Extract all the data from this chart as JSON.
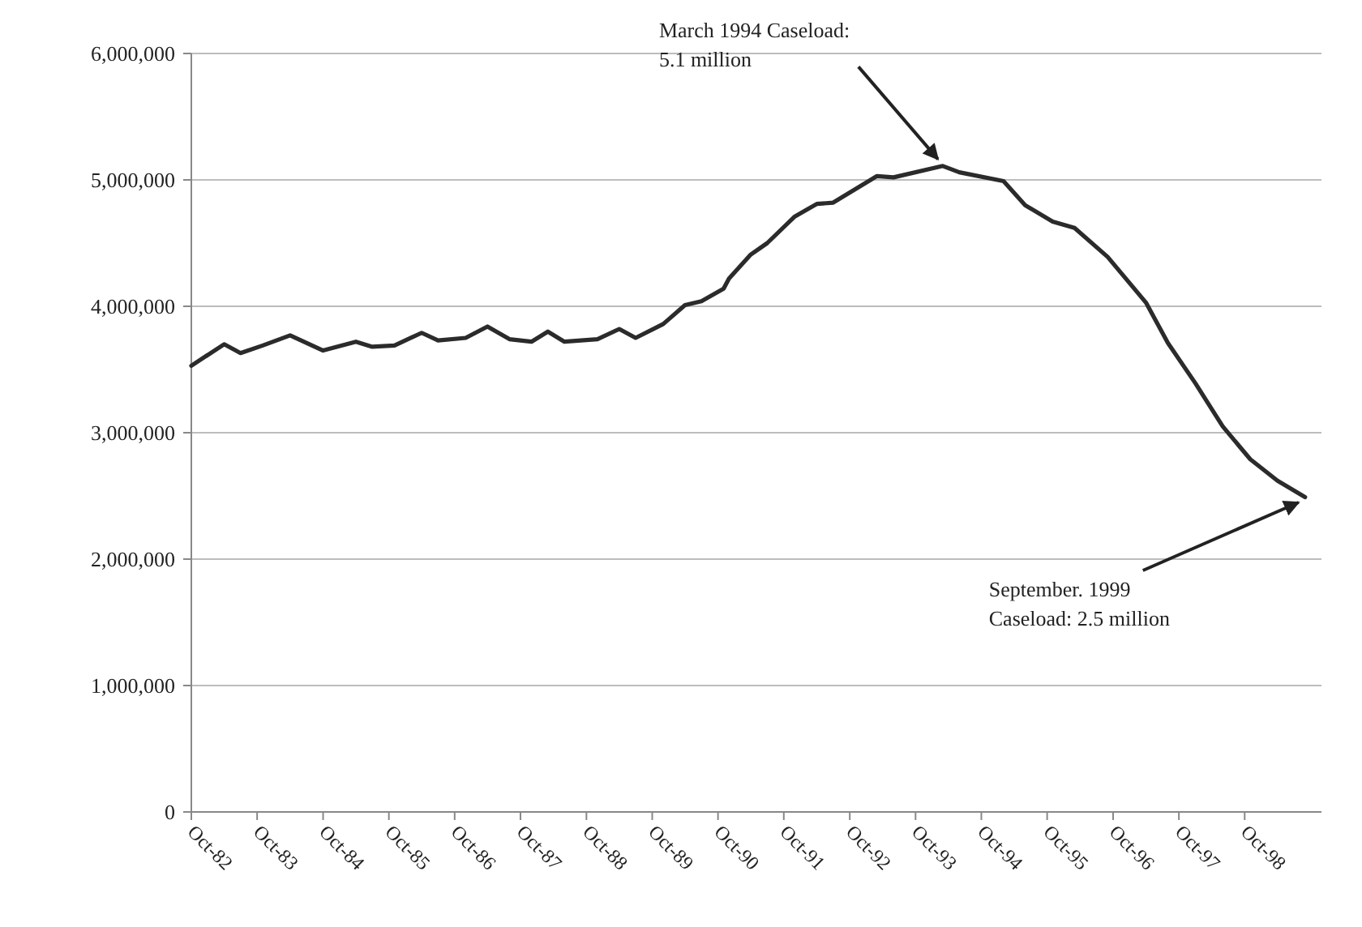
{
  "chart_data": {
    "type": "line",
    "x": [
      "1982-10",
      "1983-04",
      "1983-07",
      "1983-11",
      "1984-04",
      "1984-10",
      "1985-04",
      "1985-07",
      "1985-11",
      "1986-04",
      "1986-07",
      "1986-12",
      "1987-04",
      "1987-08",
      "1987-12",
      "1988-03",
      "1988-06",
      "1988-12",
      "1989-04",
      "1989-07",
      "1989-12",
      "1990-04",
      "1990-07",
      "1990-11",
      "1990-12",
      "1991-04",
      "1991-07",
      "1991-12",
      "1992-04",
      "1992-07",
      "1993-03",
      "1993-06",
      "1994-03",
      "1994-06",
      "1995-02",
      "1995-06",
      "1995-11",
      "1996-03",
      "1996-09",
      "1997-04",
      "1997-08",
      "1998-01",
      "1998-06",
      "1998-11",
      "1999-04",
      "1999-09"
    ],
    "series": [
      {
        "color": "#2b2b2b",
        "values": [
          3530000,
          3700000,
          3630000,
          3690000,
          3770000,
          3650000,
          3720000,
          3680000,
          3690000,
          3790000,
          3730000,
          3750000,
          3840000,
          3740000,
          3720000,
          3800000,
          3720000,
          3740000,
          3820000,
          3750000,
          3860000,
          4010000,
          4040000,
          4140000,
          4220000,
          4410000,
          4500000,
          4710000,
          4810000,
          4820000,
          5030000,
          5020000,
          5110000,
          5060000,
          4990000,
          4800000,
          4670000,
          4620000,
          4390000,
          4030000,
          3710000,
          3390000,
          3050000,
          2790000,
          2620000,
          2490000
        ]
      }
    ],
    "xlim": [
      "1982-10",
      "1999-12"
    ],
    "xticks": [
      {
        "value": "1982-10",
        "label": "Oct-82"
      },
      {
        "value": "1983-10",
        "label": "Oct-83"
      },
      {
        "value": "1984-10",
        "label": "Oct-84"
      },
      {
        "value": "1985-10",
        "label": "Oct-85"
      },
      {
        "value": "1986-10",
        "label": "Oct-86"
      },
      {
        "value": "1987-10",
        "label": "Oct-87"
      },
      {
        "value": "1988-10",
        "label": "Oct-88"
      },
      {
        "value": "1989-10",
        "label": "Oct-89"
      },
      {
        "value": "1990-10",
        "label": "Oct-90"
      },
      {
        "value": "1991-10",
        "label": "Oct-91"
      },
      {
        "value": "1992-10",
        "label": "Oct-92"
      },
      {
        "value": "1993-10",
        "label": "Oct-93"
      },
      {
        "value": "1994-10",
        "label": "Oct-94"
      },
      {
        "value": "1995-10",
        "label": "Oct-95"
      },
      {
        "value": "1996-10",
        "label": "Oct-96"
      },
      {
        "value": "1997-10",
        "label": "Oct-97"
      },
      {
        "value": "1998-10",
        "label": "Oct-98"
      }
    ],
    "ylim": [
      0,
      6000000
    ],
    "yticks": [
      0,
      {
        "value": 1000000,
        "label": "1,000,000"
      },
      {
        "value": 2000000,
        "label": "2,000,000"
      },
      {
        "value": 3000000,
        "label": "3,000,000"
      },
      {
        "value": 4000000,
        "label": "4,000,000"
      },
      {
        "value": 5000000,
        "label": "5,000,000"
      },
      {
        "value": 6000000,
        "label": "6,000,000"
      }
    ],
    "grid": "y",
    "marker": "none",
    "line_style": "solid",
    "annotations": [
      {
        "text": "March 1994 Caseload:\n5.1 million",
        "x": "1994-03",
        "y": 5100000
      },
      {
        "text": "September. 1999\nCaseload: 2.5 million",
        "x": "1999-09",
        "y": 2500000
      }
    ]
  }
}
